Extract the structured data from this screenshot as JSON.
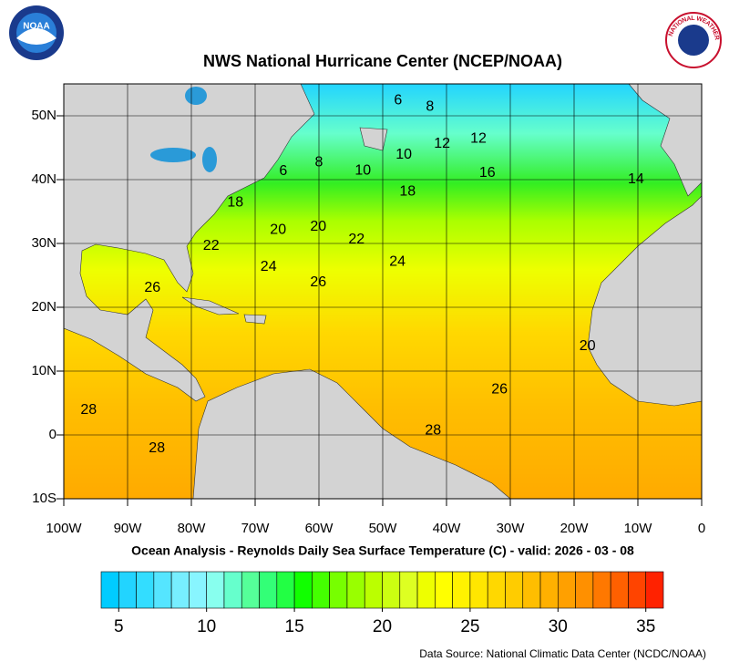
{
  "header": {
    "title": "NWS National Hurricane Center (NCEP/NOAA)",
    "noaa_logo": "NOAA",
    "nws_logo": "NATIONAL WEATHER SERVICE"
  },
  "map": {
    "xlim": [
      -100,
      0
    ],
    "ylim": [
      -10,
      55
    ],
    "xticks": [
      {
        "value": -100,
        "label": "100W"
      },
      {
        "value": -90,
        "label": "90W"
      },
      {
        "value": -80,
        "label": "80W"
      },
      {
        "value": -70,
        "label": "70W"
      },
      {
        "value": -60,
        "label": "60W"
      },
      {
        "value": -50,
        "label": "50W"
      },
      {
        "value": -40,
        "label": "40W"
      },
      {
        "value": -30,
        "label": "30W"
      },
      {
        "value": -20,
        "label": "20W"
      },
      {
        "value": -10,
        "label": "10W"
      },
      0
    ],
    "yticks": [
      {
        "value": -10,
        "label": "10S"
      },
      0,
      {
        "value": 10,
        "label": "10N"
      },
      {
        "value": 20,
        "label": "20N"
      },
      {
        "value": 30,
        "label": "30N"
      },
      {
        "value": 40,
        "label": "40N"
      },
      {
        "value": 50,
        "label": "50N"
      }
    ],
    "grid": true,
    "contour_labels": [
      {
        "value": 6,
        "lon": -47.6,
        "lat": 52.4
      },
      {
        "value": 8,
        "lon": -42.6,
        "lat": 51.4
      },
      {
        "value": 12,
        "lon": -40.7,
        "lat": 45.6
      },
      {
        "value": 12,
        "lon": -35,
        "lat": 46.4
      },
      {
        "value": 16,
        "lon": -33.6,
        "lat": 41
      },
      {
        "value": 14,
        "lon": -10.3,
        "lat": 40
      },
      {
        "value": 6,
        "lon": -65.6,
        "lat": 41.3
      },
      {
        "value": 8,
        "lon": -60,
        "lat": 42.7
      },
      {
        "value": 10,
        "lon": -53.1,
        "lat": 41.4
      },
      {
        "value": 10,
        "lon": -46.7,
        "lat": 43.9
      },
      {
        "value": 18,
        "lon": -46.1,
        "lat": 38.1
      },
      {
        "value": 18,
        "lon": -73.1,
        "lat": 36.4
      },
      {
        "value": 20,
        "lon": -66.4,
        "lat": 32.1
      },
      {
        "value": 20,
        "lon": -60.1,
        "lat": 32.6
      },
      {
        "value": 22,
        "lon": -54.1,
        "lat": 30.6
      },
      {
        "value": 22,
        "lon": -76.9,
        "lat": 29.6
      },
      {
        "value": 24,
        "lon": -67.9,
        "lat": 26.3
      },
      {
        "value": 24,
        "lon": -47.7,
        "lat": 27.1
      },
      {
        "value": 26,
        "lon": -60.1,
        "lat": 23.9
      },
      {
        "value": 26,
        "lon": -86.1,
        "lat": 23
      },
      {
        "value": 20,
        "lon": -17.9,
        "lat": 13.9
      },
      {
        "value": 26,
        "lon": -31.7,
        "lat": 7.1
      },
      {
        "value": 28,
        "lon": -42.1,
        "lat": 0.7
      },
      {
        "value": 28,
        "lon": -96.1,
        "lat": 3.9
      },
      {
        "value": 28,
        "lon": -85.4,
        "lat": -2.1
      }
    ]
  },
  "subtitle": "Ocean Analysis - Reynolds Daily Sea Surface Temperature (C) - valid: 2026 - 03 - 08",
  "colorbar": {
    "lim": [
      4,
      36
    ],
    "ticks": [
      5,
      10,
      15,
      20,
      25,
      30,
      35
    ],
    "colors": [
      "#00ccff",
      "#22d4ff",
      "#33ddff",
      "#55e5ff",
      "#77eeff",
      "#88f5ff",
      "#88ffee",
      "#66ffcc",
      "#55ff99",
      "#33ff77",
      "#22ff44",
      "#11ff00",
      "#44ff00",
      "#77ff00",
      "#99ff00",
      "#bbff00",
      "#ccff11",
      "#ddff22",
      "#eeff00",
      "#ffff00",
      "#fff200",
      "#ffe600",
      "#ffd800",
      "#ffcc00",
      "#ffbe00",
      "#ffb000",
      "#ffa000",
      "#ff9000",
      "#ff7800",
      "#ff6000",
      "#ff4400",
      "#ff2200"
    ]
  },
  "footer": {
    "source": "Data Source: National Climatic Data Center (NCDC/NOAA)"
  }
}
